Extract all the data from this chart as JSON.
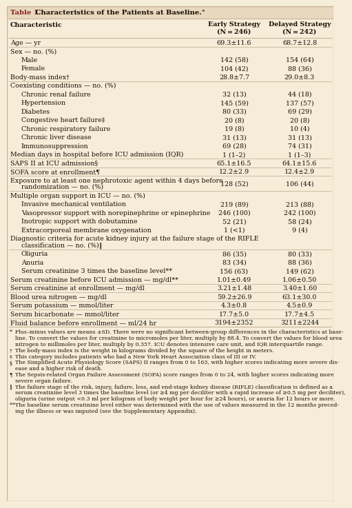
{
  "title_bold": "Table 1.",
  "title_rest": " Characteristics of the Patients at Baseline.°",
  "col1_header": "Characteristic",
  "col2_header_line1": "Early Strategy",
  "col2_header_line2": "(N = 246)",
  "col3_header_line1": "Delayed Strategy",
  "col3_header_line2": "(N = 242)",
  "rows": [
    {
      "label": "Age — yr",
      "v1": "69.3±11.6",
      "v2": "68.7±12.8",
      "indent": 0,
      "bold": false,
      "sep_after": true,
      "multiline": false
    },
    {
      "label": "Sex — no. (%)",
      "v1": "",
      "v2": "",
      "indent": 0,
      "bold": false,
      "sep_after": false,
      "multiline": false
    },
    {
      "label": "Male",
      "v1": "142 (58)",
      "v2": "154 (64)",
      "indent": 1,
      "bold": false,
      "sep_after": false,
      "multiline": false
    },
    {
      "label": "Female",
      "v1": "104 (42)",
      "v2": "88 (36)",
      "indent": 1,
      "bold": false,
      "sep_after": false,
      "multiline": false
    },
    {
      "label": "Body-mass index†",
      "v1": "28.8±7.7",
      "v2": "29.0±8.3",
      "indent": 0,
      "bold": false,
      "sep_after": true,
      "multiline": false
    },
    {
      "label": "Coexisting conditions — no. (%)",
      "v1": "",
      "v2": "",
      "indent": 0,
      "bold": false,
      "sep_after": false,
      "multiline": false
    },
    {
      "label": "Chronic renal failure",
      "v1": "32 (13)",
      "v2": "44 (18)",
      "indent": 1,
      "bold": false,
      "sep_after": false,
      "multiline": false
    },
    {
      "label": "Hypertension",
      "v1": "145 (59)",
      "v2": "137 (57)",
      "indent": 1,
      "bold": false,
      "sep_after": false,
      "multiline": false
    },
    {
      "label": "Diabetes",
      "v1": "80 (33)",
      "v2": "69 (29)",
      "indent": 1,
      "bold": false,
      "sep_after": false,
      "multiline": false
    },
    {
      "label": "Congestive heart failure‡",
      "v1": "20 (8)",
      "v2": "20 (8)",
      "indent": 1,
      "bold": false,
      "sep_after": false,
      "multiline": false
    },
    {
      "label": "Chronic respiratory failure",
      "v1": "19 (8)",
      "v2": "10 (4)",
      "indent": 1,
      "bold": false,
      "sep_after": false,
      "multiline": false
    },
    {
      "label": "Chronic liver disease",
      "v1": "31 (13)",
      "v2": "31 (13)",
      "indent": 1,
      "bold": false,
      "sep_after": false,
      "multiline": false
    },
    {
      "label": "Immunosuppression",
      "v1": "69 (28)",
      "v2": "74 (31)",
      "indent": 1,
      "bold": false,
      "sep_after": false,
      "multiline": false
    },
    {
      "label": "Median days in hospital before ICU admission (IQR)",
      "v1": "1 (1–2)",
      "v2": "1 (1–3)",
      "indent": 0,
      "bold": false,
      "sep_after": true,
      "multiline": false
    },
    {
      "label": "SAPS II at ICU admission§",
      "v1": "65.1±16.5",
      "v2": "64.1±15.6",
      "indent": 0,
      "bold": false,
      "sep_after": true,
      "multiline": false
    },
    {
      "label": "SOFA score at enrollment¶",
      "v1": "12.2±2.9",
      "v2": "12.4±2.9",
      "indent": 0,
      "bold": false,
      "sep_after": true,
      "multiline": false
    },
    {
      "label": "Exposure to at least one nephrotoxic agent within 4 days before\n        randomization — no. (%)",
      "v1": "128 (52)",
      "v2": "106 (44)",
      "indent": 0,
      "bold": false,
      "sep_after": true,
      "multiline": true
    },
    {
      "label": "Multiple organ support in ICU — no. (%)",
      "v1": "",
      "v2": "",
      "indent": 0,
      "bold": false,
      "sep_after": false,
      "multiline": false
    },
    {
      "label": "Invasive mechanical ventilation",
      "v1": "219 (89)",
      "v2": "213 (88)",
      "indent": 1,
      "bold": false,
      "sep_after": false,
      "multiline": false
    },
    {
      "label": "Vasopressor support with norepinephrine or epinephrine",
      "v1": "246 (100)",
      "v2": "242 (100)",
      "indent": 1,
      "bold": false,
      "sep_after": false,
      "multiline": false
    },
    {
      "label": "Inotropic support with dobutamine",
      "v1": "52 (21)",
      "v2": "58 (24)",
      "indent": 1,
      "bold": false,
      "sep_after": false,
      "multiline": false
    },
    {
      "label": "Extracorporeal membrane oxygenation",
      "v1": "1 (<1)",
      "v2": "9 (4)",
      "indent": 1,
      "bold": false,
      "sep_after": false,
      "multiline": false
    },
    {
      "label": "Diagnostic criteria for acute kidney injury at the failure stage of the RIFLE\n        classification — no. (%)‖",
      "v1": "",
      "v2": "",
      "indent": 0,
      "bold": false,
      "sep_after": true,
      "multiline": true
    },
    {
      "label": "Oliguria",
      "v1": "86 (35)",
      "v2": "80 (33)",
      "indent": 1,
      "bold": false,
      "sep_after": false,
      "multiline": false
    },
    {
      "label": "Anuria",
      "v1": "83 (34)",
      "v2": "88 (36)",
      "indent": 1,
      "bold": false,
      "sep_after": false,
      "multiline": false
    },
    {
      "label": "Serum creatinine 3 times the baseline level**",
      "v1": "156 (63)",
      "v2": "149 (62)",
      "indent": 1,
      "bold": false,
      "sep_after": false,
      "multiline": false
    },
    {
      "label": "Serum creatinine before ICU admission — mg/dl**",
      "v1": "1.01±0.49",
      "v2": "1.06±0.50",
      "indent": 0,
      "bold": false,
      "sep_after": true,
      "multiline": false
    },
    {
      "label": "Serum creatinine at enrollment — mg/dl",
      "v1": "3.21±1.48",
      "v2": "3.40±1.60",
      "indent": 0,
      "bold": false,
      "sep_after": true,
      "multiline": false
    },
    {
      "label": "Blood urea nitrogen — mg/dl",
      "v1": "59.2±26.9",
      "v2": "63.1±30.0",
      "indent": 0,
      "bold": false,
      "sep_after": true,
      "multiline": false
    },
    {
      "label": "Serum potassium — mmol/liter",
      "v1": "4.3±0.8",
      "v2": "4.5±0.9",
      "indent": 0,
      "bold": false,
      "sep_after": true,
      "multiline": false
    },
    {
      "label": "Serum bicarbonate — mmol/liter",
      "v1": "17.7±5.0",
      "v2": "17.7±4.5",
      "indent": 0,
      "bold": false,
      "sep_after": true,
      "multiline": false
    },
    {
      "label": "Fluid balance before enrollment — ml/24 hr",
      "v1": "3194±2352",
      "v2": "3211±2244",
      "indent": 0,
      "bold": false,
      "sep_after": true,
      "multiline": false
    }
  ],
  "footnotes": [
    [
      "* ",
      "Plus–minus values are means ±SD. There were no significant between-group differences in the characteristics at base-\n   line. To convert the values for creatinine to micromoles per liter, multiply by 88.4. To convert the values for blood urea\n   nitrogen to millimoles per liter, multiply by 0.357. ICU denotes intensive care unit, and IQR interquartile range."
    ],
    [
      "† ",
      "The body-mass index is the weight in kilograms divided by the square of the height in meters."
    ],
    [
      "‡ ",
      "This category includes patients who had a New York Heart Association class of III or IV."
    ],
    [
      "§ ",
      "The Simplified Acute Physiology Score (SAPS) II ranges from 0 to 163, with higher scores indicating more severe dis-\n   ease and a higher risk of death."
    ],
    [
      "¶ ",
      "The Sepsis-related Organ Failure Assessment (SOFA) score ranges from 0 to 24, with higher scores indicating more\n   severe organ failure."
    ],
    [
      "‖ ",
      "The failure stage of the risk, injury, failure, loss, and end-stage kidney disease (RIFLE) classification is defined as a\n   serum creatinine level 3 times the baseline level (or ≥4 mg per deciliter with a rapid increase of ≥0.5 mg per deciliter),\n   oliguria (urine output <0.3 ml per kilogram of body weight per hour for ≥24 hours), or anuria for 12 hours or more."
    ],
    [
      "** ",
      "The baseline serum creatinine level either was determined with the use of values measured in the 12 months preced-\n    ing the illness or was imputed (see the Supplementary Appendix)."
    ]
  ],
  "bg_color": "#f5edd8",
  "title_bar_color": "#e8d9be",
  "title_red": "#8b2020",
  "text_color": "#1a1008",
  "line_color": "#c8b49a",
  "footnote_color": "#1a1008"
}
